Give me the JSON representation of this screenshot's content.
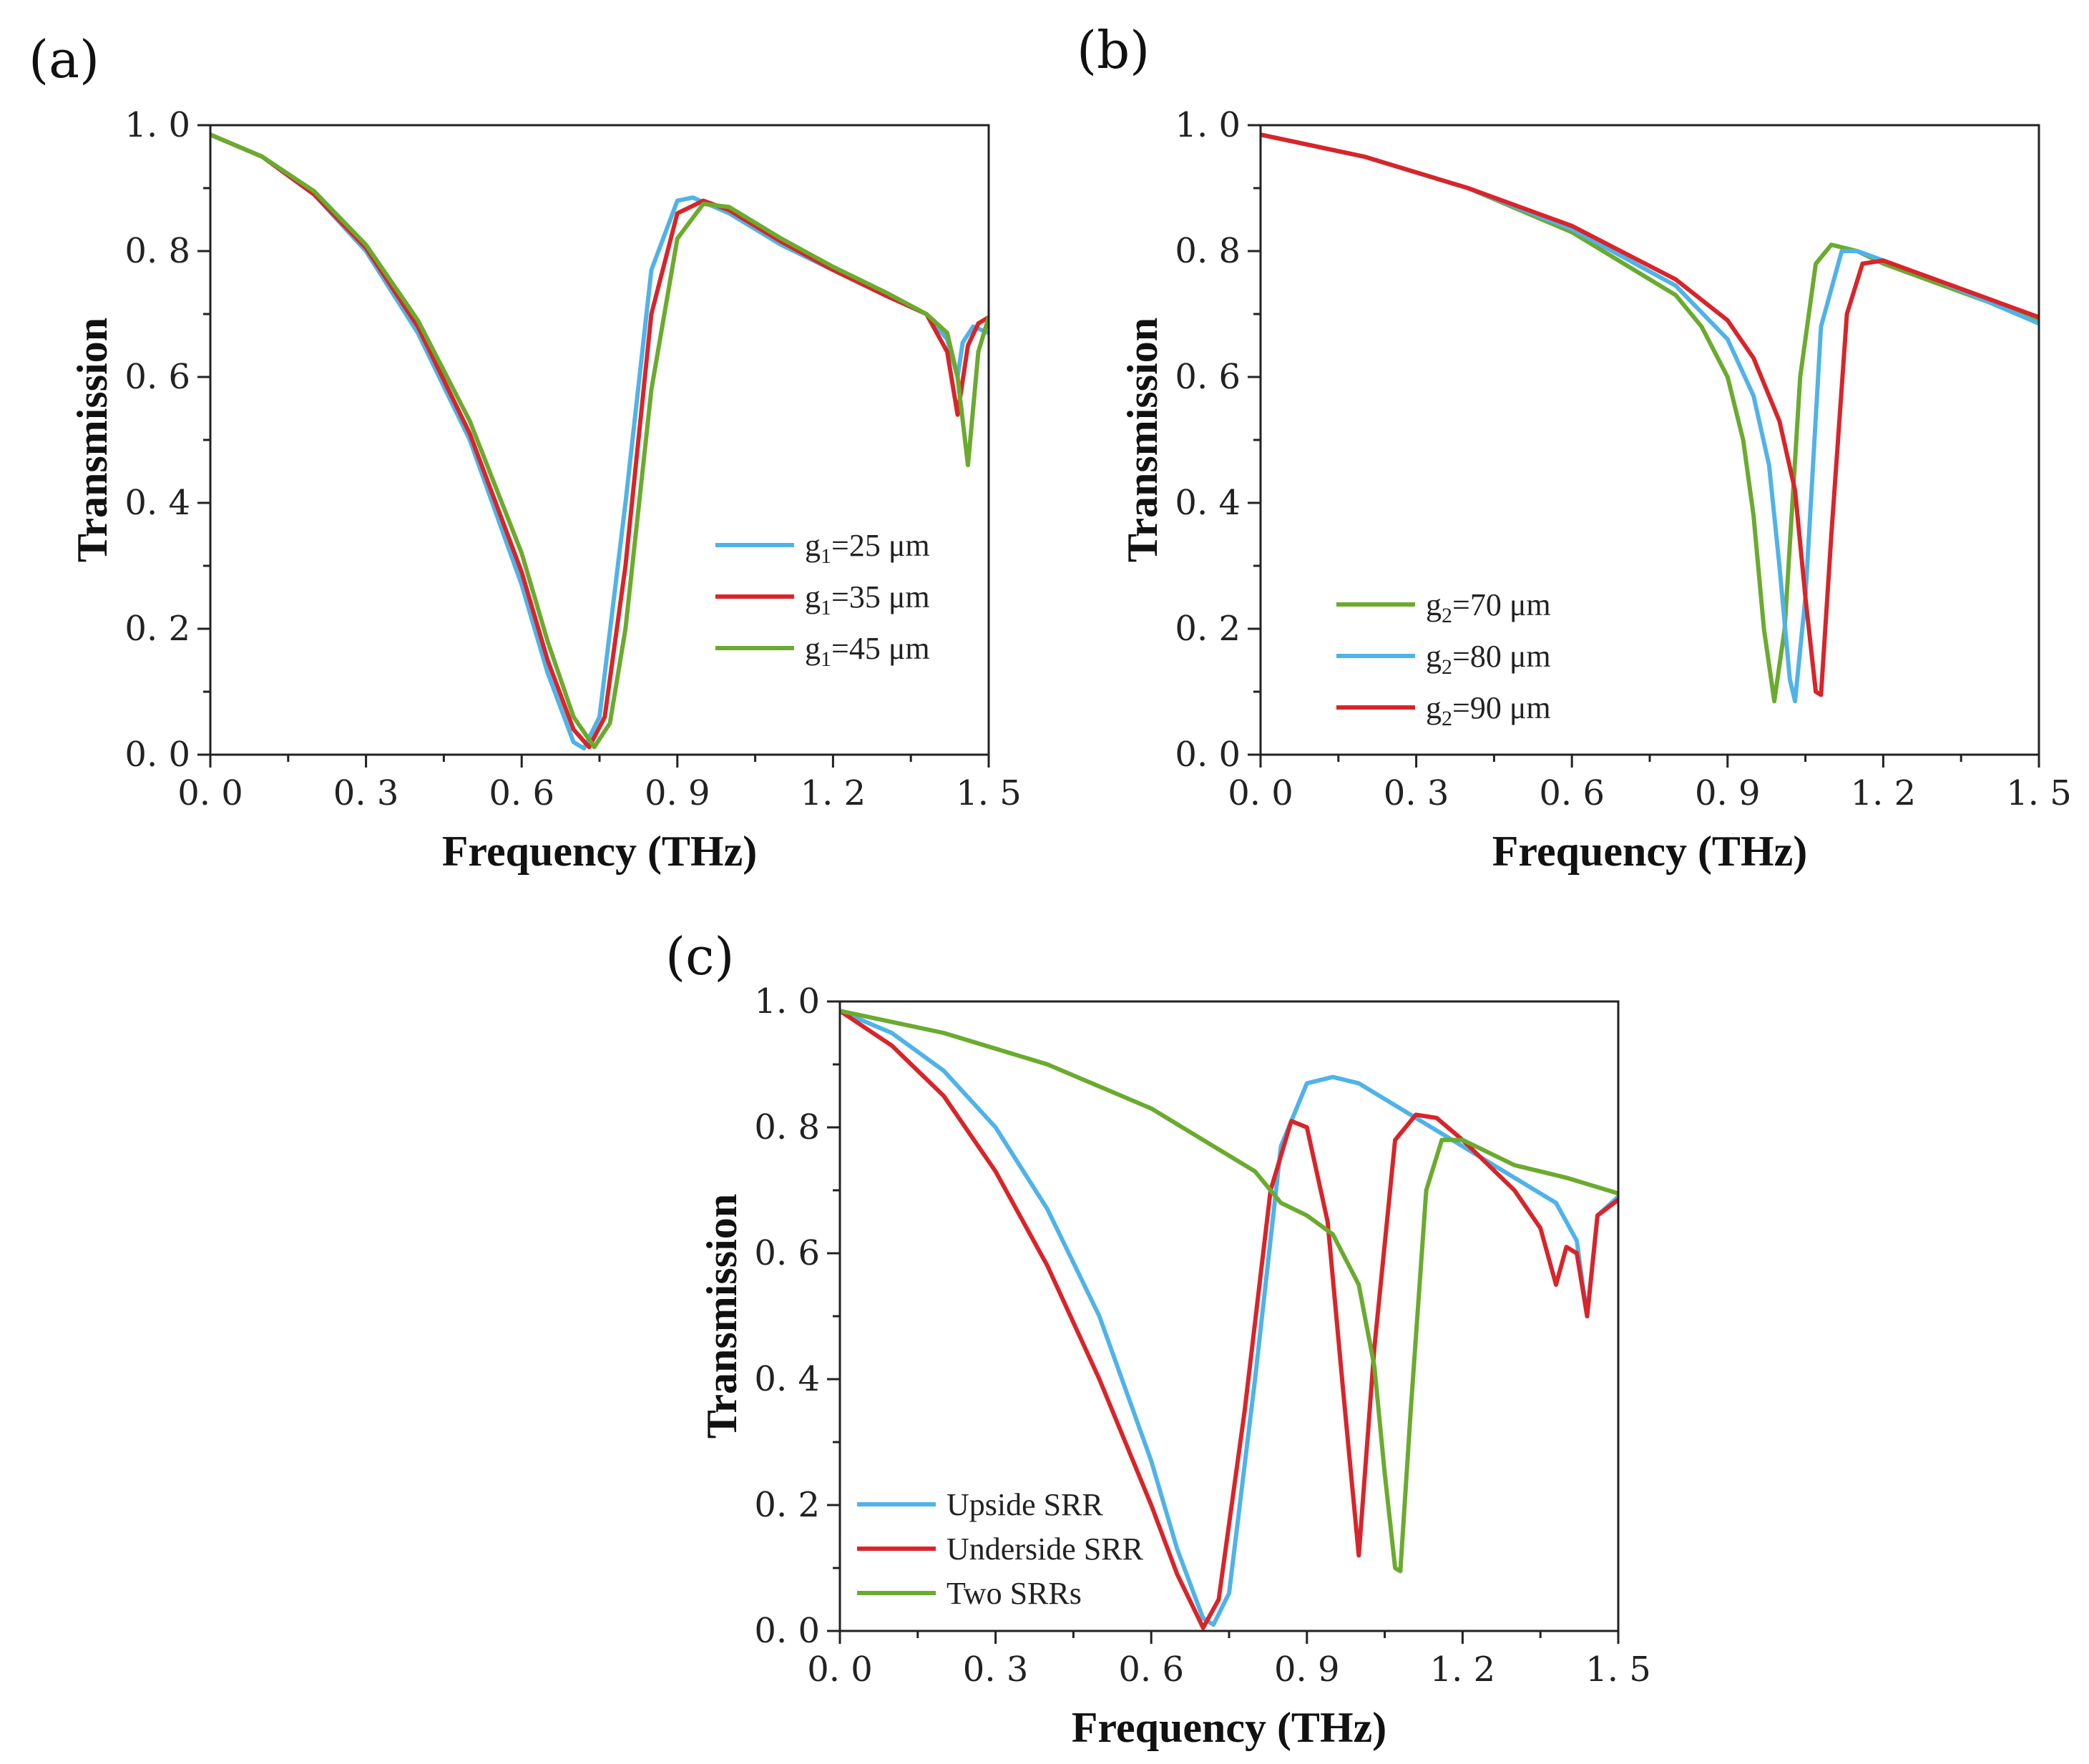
{
  "chart_data": [
    {
      "panel": "(a)",
      "type": "line",
      "xlabel": "Frequency (THz)",
      "ylabel": "Transmission",
      "xlim": [
        0.0,
        1.5
      ],
      "ylim": [
        0.0,
        1.0
      ],
      "xticks": [
        "0. 0",
        "0. 3",
        "0. 6",
        "0. 9",
        "1. 2",
        "1. 5"
      ],
      "yticks": [
        "0. 0",
        "0. 2",
        "0. 4",
        "0. 6",
        "0. 8",
        "1. 0"
      ],
      "legend_position": "center-right",
      "series": [
        {
          "name": "g1=25 μm",
          "label_main": "g",
          "label_sub": "1",
          "label_rest": "=25 μm",
          "color": "#4fb3e8",
          "points": [
            [
              0.0,
              0.985
            ],
            [
              0.1,
              0.95
            ],
            [
              0.2,
              0.89
            ],
            [
              0.3,
              0.8
            ],
            [
              0.4,
              0.67
            ],
            [
              0.5,
              0.5
            ],
            [
              0.6,
              0.27
            ],
            [
              0.65,
              0.13
            ],
            [
              0.7,
              0.02
            ],
            [
              0.72,
              0.01
            ],
            [
              0.75,
              0.06
            ],
            [
              0.8,
              0.4
            ],
            [
              0.85,
              0.77
            ],
            [
              0.9,
              0.88
            ],
            [
              0.93,
              0.885
            ],
            [
              1.0,
              0.86
            ],
            [
              1.1,
              0.81
            ],
            [
              1.2,
              0.77
            ],
            [
              1.3,
              0.73
            ],
            [
              1.38,
              0.7
            ],
            [
              1.42,
              0.66
            ],
            [
              1.44,
              0.6
            ],
            [
              1.45,
              0.655
            ],
            [
              1.47,
              0.68
            ],
            [
              1.5,
              0.67
            ]
          ]
        },
        {
          "name": "g1=35 μm",
          "label_main": "g",
          "label_sub": "1",
          "label_rest": "=35 μm",
          "color": "#d9242a",
          "points": [
            [
              0.0,
              0.985
            ],
            [
              0.1,
              0.95
            ],
            [
              0.2,
              0.89
            ],
            [
              0.3,
              0.805
            ],
            [
              0.4,
              0.68
            ],
            [
              0.5,
              0.51
            ],
            [
              0.6,
              0.29
            ],
            [
              0.65,
              0.15
            ],
            [
              0.7,
              0.04
            ],
            [
              0.73,
              0.012
            ],
            [
              0.76,
              0.06
            ],
            [
              0.8,
              0.3
            ],
            [
              0.85,
              0.7
            ],
            [
              0.9,
              0.86
            ],
            [
              0.95,
              0.88
            ],
            [
              1.0,
              0.865
            ],
            [
              1.1,
              0.815
            ],
            [
              1.2,
              0.77
            ],
            [
              1.3,
              0.73
            ],
            [
              1.38,
              0.7
            ],
            [
              1.42,
              0.64
            ],
            [
              1.44,
              0.54
            ],
            [
              1.46,
              0.65
            ],
            [
              1.48,
              0.685
            ],
            [
              1.5,
              0.695
            ]
          ]
        },
        {
          "name": "g1=45 μm",
          "label_main": "g",
          "label_sub": "1",
          "label_rest": "=45 μm",
          "color": "#6aab2e",
          "points": [
            [
              0.0,
              0.985
            ],
            [
              0.1,
              0.95
            ],
            [
              0.2,
              0.895
            ],
            [
              0.3,
              0.81
            ],
            [
              0.4,
              0.69
            ],
            [
              0.5,
              0.53
            ],
            [
              0.6,
              0.32
            ],
            [
              0.65,
              0.18
            ],
            [
              0.7,
              0.06
            ],
            [
              0.74,
              0.012
            ],
            [
              0.77,
              0.05
            ],
            [
              0.8,
              0.2
            ],
            [
              0.85,
              0.58
            ],
            [
              0.9,
              0.82
            ],
            [
              0.95,
              0.875
            ],
            [
              1.0,
              0.87
            ],
            [
              1.1,
              0.82
            ],
            [
              1.2,
              0.775
            ],
            [
              1.3,
              0.735
            ],
            [
              1.38,
              0.7
            ],
            [
              1.42,
              0.67
            ],
            [
              1.44,
              0.6
            ],
            [
              1.46,
              0.46
            ],
            [
              1.48,
              0.64
            ],
            [
              1.5,
              0.695
            ]
          ]
        }
      ]
    },
    {
      "panel": "(b)",
      "type": "line",
      "xlabel": "Frequency (THz)",
      "ylabel": "Transmission",
      "xlim": [
        0.0,
        1.5
      ],
      "ylim": [
        0.0,
        1.0
      ],
      "xticks": [
        "0. 0",
        "0. 3",
        "0. 6",
        "0. 9",
        "1. 2",
        "1. 5"
      ],
      "yticks": [
        "0. 0",
        "0. 2",
        "0. 4",
        "0. 6",
        "0. 8",
        "1. 0"
      ],
      "legend_position": "bottom-left",
      "series": [
        {
          "name": "g2=70 μm",
          "label_main": "g",
          "label_sub": "2",
          "label_rest": "=70 μm",
          "color": "#6aab2e",
          "points": [
            [
              0.0,
              0.985
            ],
            [
              0.2,
              0.95
            ],
            [
              0.4,
              0.9
            ],
            [
              0.6,
              0.83
            ],
            [
              0.8,
              0.73
            ],
            [
              0.85,
              0.68
            ],
            [
              0.9,
              0.6
            ],
            [
              0.93,
              0.5
            ],
            [
              0.95,
              0.38
            ],
            [
              0.97,
              0.2
            ],
            [
              0.99,
              0.085
            ],
            [
              1.01,
              0.2
            ],
            [
              1.04,
              0.6
            ],
            [
              1.07,
              0.78
            ],
            [
              1.1,
              0.81
            ],
            [
              1.15,
              0.8
            ],
            [
              1.2,
              0.78
            ],
            [
              1.3,
              0.75
            ],
            [
              1.4,
              0.72
            ],
            [
              1.5,
              0.69
            ]
          ]
        },
        {
          "name": "g2=80 μm",
          "label_main": "g",
          "label_sub": "2",
          "label_rest": "=80 μm",
          "color": "#4fb3e8",
          "points": [
            [
              0.0,
              0.985
            ],
            [
              0.2,
              0.95
            ],
            [
              0.4,
              0.9
            ],
            [
              0.6,
              0.835
            ],
            [
              0.8,
              0.745
            ],
            [
              0.9,
              0.66
            ],
            [
              0.95,
              0.57
            ],
            [
              0.98,
              0.46
            ],
            [
              1.0,
              0.3
            ],
            [
              1.02,
              0.12
            ],
            [
              1.03,
              0.085
            ],
            [
              1.05,
              0.25
            ],
            [
              1.08,
              0.68
            ],
            [
              1.12,
              0.8
            ],
            [
              1.15,
              0.8
            ],
            [
              1.2,
              0.785
            ],
            [
              1.3,
              0.755
            ],
            [
              1.4,
              0.72
            ],
            [
              1.5,
              0.685
            ]
          ]
        },
        {
          "name": "g2=90 μm",
          "label_main": "g",
          "label_sub": "2",
          "label_rest": "=90 μm",
          "color": "#d9242a",
          "points": [
            [
              0.0,
              0.985
            ],
            [
              0.2,
              0.95
            ],
            [
              0.4,
              0.9
            ],
            [
              0.6,
              0.84
            ],
            [
              0.8,
              0.755
            ],
            [
              0.9,
              0.69
            ],
            [
              0.95,
              0.63
            ],
            [
              1.0,
              0.53
            ],
            [
              1.03,
              0.42
            ],
            [
              1.05,
              0.25
            ],
            [
              1.07,
              0.1
            ],
            [
              1.08,
              0.095
            ],
            [
              1.1,
              0.35
            ],
            [
              1.13,
              0.7
            ],
            [
              1.16,
              0.78
            ],
            [
              1.2,
              0.785
            ],
            [
              1.3,
              0.755
            ],
            [
              1.4,
              0.725
            ],
            [
              1.5,
              0.695
            ]
          ]
        }
      ]
    },
    {
      "panel": "(c)",
      "type": "line",
      "xlabel": "Frequency (THz)",
      "ylabel": "Transmission",
      "xlim": [
        0.0,
        1.5
      ],
      "ylim": [
        0.0,
        1.0
      ],
      "xticks": [
        "0. 0",
        "0. 3",
        "0. 6",
        "0. 9",
        "1. 2",
        "1. 5"
      ],
      "yticks": [
        "0. 0",
        "0. 2",
        "0. 4",
        "0. 6",
        "0. 8",
        "1. 0"
      ],
      "legend_position": "bottom-left",
      "series": [
        {
          "name": "Upside SRR",
          "label_main": "Upside SRR",
          "label_sub": "",
          "label_rest": "",
          "color": "#4fb3e8",
          "points": [
            [
              0.0,
              0.985
            ],
            [
              0.1,
              0.95
            ],
            [
              0.2,
              0.89
            ],
            [
              0.3,
              0.8
            ],
            [
              0.4,
              0.67
            ],
            [
              0.5,
              0.5
            ],
            [
              0.6,
              0.27
            ],
            [
              0.65,
              0.13
            ],
            [
              0.7,
              0.02
            ],
            [
              0.72,
              0.01
            ],
            [
              0.75,
              0.06
            ],
            [
              0.8,
              0.4
            ],
            [
              0.85,
              0.77
            ],
            [
              0.9,
              0.87
            ],
            [
              0.95,
              0.88
            ],
            [
              1.0,
              0.87
            ],
            [
              1.1,
              0.82
            ],
            [
              1.2,
              0.77
            ],
            [
              1.3,
              0.72
            ],
            [
              1.38,
              0.68
            ],
            [
              1.42,
              0.62
            ],
            [
              1.44,
              0.5
            ],
            [
              1.46,
              0.66
            ],
            [
              1.5,
              0.69
            ]
          ]
        },
        {
          "name": "Underside SRR",
          "label_main": "Underside SRR",
          "label_sub": "",
          "label_rest": "",
          "color": "#d9242a",
          "points": [
            [
              0.0,
              0.985
            ],
            [
              0.1,
              0.93
            ],
            [
              0.2,
              0.85
            ],
            [
              0.3,
              0.73
            ],
            [
              0.4,
              0.58
            ],
            [
              0.5,
              0.4
            ],
            [
              0.6,
              0.2
            ],
            [
              0.65,
              0.09
            ],
            [
              0.7,
              0.005
            ],
            [
              0.73,
              0.05
            ],
            [
              0.78,
              0.35
            ],
            [
              0.83,
              0.7
            ],
            [
              0.87,
              0.81
            ],
            [
              0.9,
              0.8
            ],
            [
              0.94,
              0.65
            ],
            [
              0.97,
              0.38
            ],
            [
              1.0,
              0.12
            ],
            [
              1.03,
              0.45
            ],
            [
              1.07,
              0.78
            ],
            [
              1.11,
              0.82
            ],
            [
              1.15,
              0.815
            ],
            [
              1.2,
              0.78
            ],
            [
              1.3,
              0.7
            ],
            [
              1.35,
              0.64
            ],
            [
              1.38,
              0.55
            ],
            [
              1.4,
              0.61
            ],
            [
              1.42,
              0.6
            ],
            [
              1.44,
              0.5
            ],
            [
              1.46,
              0.66
            ],
            [
              1.5,
              0.685
            ]
          ]
        },
        {
          "name": "Two SRRs",
          "label_main": "Two SRRs",
          "label_sub": "",
          "label_rest": "",
          "color": "#6aab2e",
          "points": [
            [
              0.0,
              0.985
            ],
            [
              0.2,
              0.95
            ],
            [
              0.4,
              0.9
            ],
            [
              0.6,
              0.83
            ],
            [
              0.8,
              0.73
            ],
            [
              0.85,
              0.68
            ],
            [
              0.9,
              0.66
            ],
            [
              0.95,
              0.63
            ],
            [
              1.0,
              0.55
            ],
            [
              1.03,
              0.42
            ],
            [
              1.05,
              0.25
            ],
            [
              1.07,
              0.1
            ],
            [
              1.08,
              0.095
            ],
            [
              1.1,
              0.35
            ],
            [
              1.13,
              0.7
            ],
            [
              1.16,
              0.78
            ],
            [
              1.2,
              0.78
            ],
            [
              1.3,
              0.74
            ],
            [
              1.4,
              0.72
            ],
            [
              1.5,
              0.695
            ]
          ]
        }
      ]
    }
  ]
}
